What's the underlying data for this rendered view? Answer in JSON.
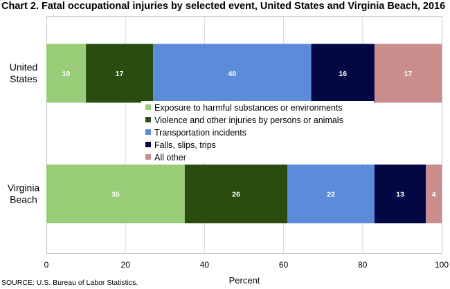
{
  "chart_data": {
    "type": "bar",
    "orientation": "horizontal",
    "stacked": true,
    "title": "Chart 2. Fatal occupational injuries by selected event, United States and Virginia Beach, 2016",
    "categories": [
      "United States",
      "Virginia Beach"
    ],
    "category_label_lines": [
      [
        "United",
        "States"
      ],
      [
        "Virginia",
        "Beach"
      ]
    ],
    "series": [
      {
        "name": "Exposure to harmful substances or environments",
        "color": "#99cc77",
        "values": [
          10,
          35
        ]
      },
      {
        "name": "Violence and other injuries by persons or animals",
        "color": "#2a4d0f",
        "values": [
          17,
          26
        ]
      },
      {
        "name": "Transportation incidents",
        "color": "#5b8bd9",
        "values": [
          40,
          22
        ]
      },
      {
        "name": "Falls, slips, trips",
        "color": "#030845",
        "values": [
          16,
          13
        ]
      },
      {
        "name": "All other",
        "color": "#c98d8d",
        "values": [
          17,
          4
        ]
      }
    ],
    "xlabel": "Percent",
    "xlim": [
      0,
      100
    ],
    "xticks": [
      0,
      20,
      40,
      60,
      80,
      100
    ],
    "grid": true,
    "legend_placement": "center"
  },
  "source": "SOURCE: U.S. Bureau of Labor Statistics."
}
